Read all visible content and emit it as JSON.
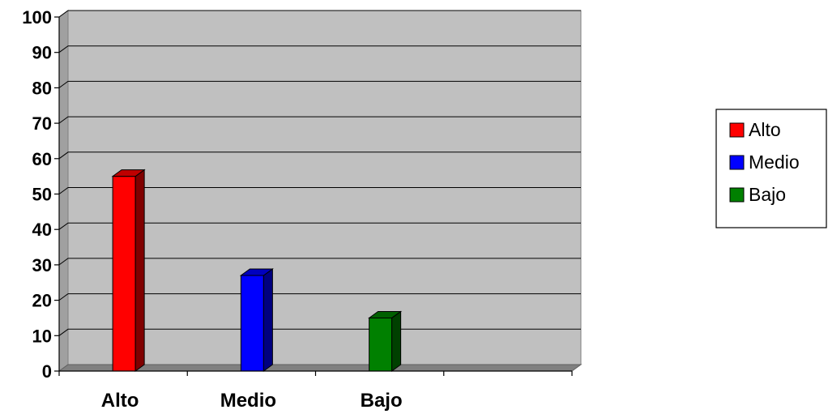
{
  "chart_data": {
    "type": "bar",
    "title": "",
    "xlabel": "",
    "ylabel": "",
    "categories": [
      "Alto",
      "Medio",
      "Bajo"
    ],
    "values": [
      55,
      27,
      15
    ],
    "colors": [
      "#ff0000",
      "#0000ff",
      "#008000"
    ],
    "ylim": [
      0,
      100
    ],
    "yticks": [
      0,
      10,
      20,
      30,
      40,
      50,
      60,
      70,
      80,
      90,
      100
    ],
    "grid": true,
    "plot_background": "#c0c0c0",
    "style": "3d-column",
    "legend": {
      "position": "right",
      "entries": [
        "Alto",
        "Medio",
        "Bajo"
      ]
    }
  }
}
